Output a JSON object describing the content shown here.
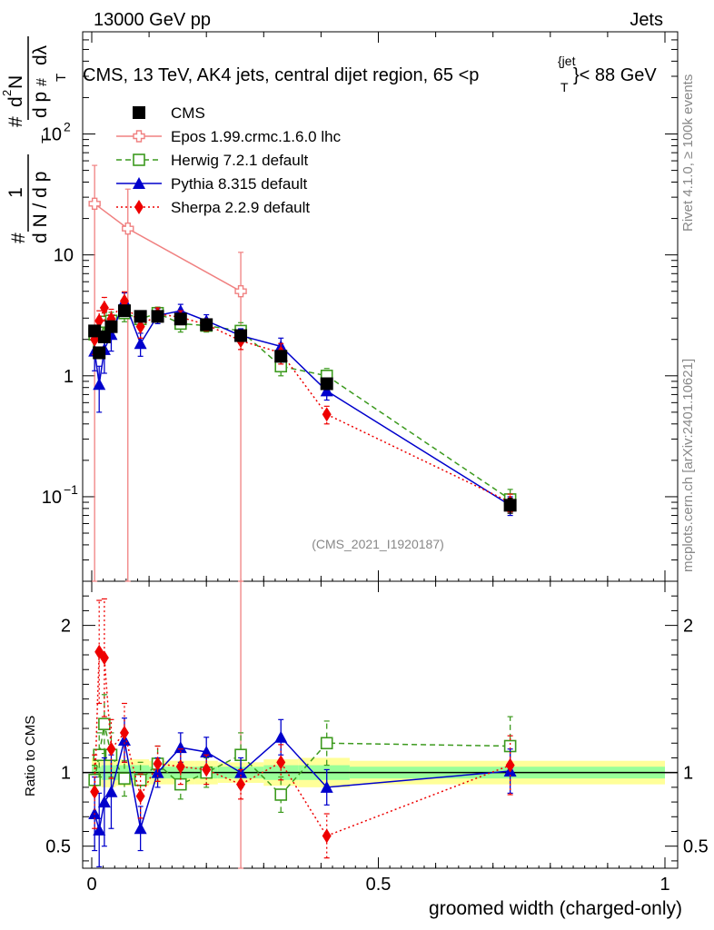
{
  "header": {
    "left": "13000 GeV pp",
    "right": "Jets",
    "title_pre": "CMS, 13 TeV, AK4 jets, central dijet region, 65 <",
    "title_p": "p",
    "title_sub": "T",
    "title_sup": "{jet",
    "title_post": "}< 88 GeV",
    "watermark": "(CMS_2021_I1920187)",
    "side_rivet": "Rivet 4.1.0, ≥ 100k events",
    "side_site": "mcplots.cern.ch [arXiv:2401.10621]"
  },
  "ylabel": {
    "hash1": "#",
    "one": "1",
    "denom": "d N / d p",
    "denom_sub": "T",
    "hash2": "#",
    "num": "d",
    "num_sup": "2",
    "num_n": "N",
    "d_pt": "d p",
    "d_pt_sub": "T",
    "dlam": "dλ",
    "hash3": "#"
  },
  "colors": {
    "cms": "#000000",
    "epos": "#f08080",
    "herwig": "#3c9a1e",
    "pythia": "#0000cc",
    "sherpa": "#ee0000",
    "band_outer": "#ffff99",
    "band_inner": "#99ff99"
  },
  "chart_data": [
    {
      "type": "scatter",
      "panel": "main",
      "xlabel": "groomed width (charged-only)",
      "ylabel": "1/dN/dpT d2N/dpT dlambda",
      "xlim": [
        0,
        1
      ],
      "ylim": [
        0.02,
        700
      ],
      "yscale": "log",
      "yticks": [
        {
          "v": 0.1,
          "base": "10",
          "exp": "−1"
        },
        {
          "v": 1,
          "base": "1",
          "exp": ""
        },
        {
          "v": 10,
          "base": "10",
          "exp": ""
        },
        {
          "v": 100,
          "base": "10",
          "exp": "2"
        }
      ],
      "series": [
        {
          "name": "CMS",
          "key": "cms",
          "marker": "square",
          "line": "none",
          "x": [
            0.005,
            0.013,
            0.022,
            0.034,
            0.057,
            0.085,
            0.115,
            0.155,
            0.2,
            0.26,
            0.33,
            0.41,
            0.73
          ],
          "y": [
            2.35,
            1.55,
            2.1,
            2.55,
            3.45,
            3.1,
            3.1,
            2.95,
            2.65,
            2.15,
            1.45,
            0.86,
            0.085
          ],
          "err": [
            0.2,
            0.15,
            0.2,
            0.25,
            0.3,
            0.25,
            0.25,
            0.25,
            0.2,
            0.2,
            0.15,
            0.08,
            0.012
          ]
        },
        {
          "name": "Epos 1.99.crmc.1.6.0 lhc",
          "key": "epos",
          "marker": "cross-open",
          "line": "solid",
          "x": [
            0.005,
            0.063,
            0.26
          ],
          "y": [
            26.5,
            16.5,
            5.0
          ],
          "lo": [
            0.001,
            0.001,
            0.001
          ],
          "hi": [
            55,
            35,
            10.5
          ]
        },
        {
          "name": "Herwig 7.2.1 default",
          "key": "herwig",
          "marker": "square-open",
          "line": "dashed",
          "x": [
            0.005,
            0.013,
            0.022,
            0.034,
            0.057,
            0.085,
            0.115,
            0.155,
            0.2,
            0.26,
            0.33,
            0.41,
            0.73
          ],
          "y": [
            2.2,
            1.75,
            2.8,
            2.85,
            3.3,
            2.95,
            3.3,
            2.7,
            2.6,
            2.35,
            1.2,
            1.0,
            0.095
          ],
          "err": [
            0.3,
            0.3,
            0.5,
            0.5,
            0.5,
            0.5,
            0.4,
            0.4,
            0.3,
            0.4,
            0.2,
            0.15,
            0.02
          ]
        },
        {
          "name": "Pythia 8.315 default",
          "key": "pythia",
          "marker": "triangle",
          "line": "solid",
          "x": [
            0.005,
            0.013,
            0.022,
            0.034,
            0.057,
            0.085,
            0.115,
            0.155,
            0.2,
            0.26,
            0.33,
            0.41,
            0.73
          ],
          "y": [
            1.6,
            0.85,
            1.65,
            2.2,
            4.15,
            1.85,
            3.15,
            3.45,
            2.85,
            2.15,
            1.75,
            0.75,
            0.085
          ],
          "err": [
            0.5,
            0.35,
            0.6,
            0.6,
            0.7,
            0.4,
            0.45,
            0.45,
            0.35,
            0.3,
            0.3,
            0.12,
            0.015
          ]
        },
        {
          "name": "Sherpa 2.2.9 default",
          "key": "sherpa",
          "marker": "diamond",
          "line": "dotted",
          "x": [
            0.005,
            0.013,
            0.022,
            0.034,
            0.057,
            0.085,
            0.115,
            0.155,
            0.2,
            0.26,
            0.33,
            0.41,
            0.73
          ],
          "y": [
            2.0,
            2.85,
            3.65,
            2.95,
            4.15,
            2.55,
            3.25,
            3.05,
            2.65,
            1.95,
            1.55,
            0.48,
            0.09
          ],
          "err": [
            0.5,
            0.6,
            0.8,
            0.6,
            0.8,
            0.5,
            0.4,
            0.4,
            0.3,
            0.3,
            0.3,
            0.08,
            0.015
          ]
        }
      ]
    },
    {
      "type": "scatter",
      "panel": "ratio",
      "xlabel": "groomed width (charged-only)",
      "ylabel": "Ratio to CMS",
      "xlim": [
        0,
        1
      ],
      "ylim": [
        0.35,
        2.3
      ],
      "xticks": [
        0,
        0.5,
        1
      ],
      "xtick_labels": [
        "0",
        "0.5",
        "1"
      ],
      "yticks": [
        0.5,
        1,
        2
      ],
      "ytick_labels": [
        "0.5",
        "1",
        "2"
      ],
      "band": {
        "edges": [
          0,
          0.01,
          0.017,
          0.027,
          0.042,
          0.072,
          0.1,
          0.13,
          0.18,
          0.22,
          0.3,
          0.36,
          0.45,
          1.0
        ],
        "inner": [
          0.05,
          0.04,
          0.05,
          0.05,
          0.05,
          0.05,
          0.04,
          0.04,
          0.04,
          0.04,
          0.05,
          0.05,
          0.04
        ],
        "outer": [
          0.1,
          0.09,
          0.1,
          0.1,
          0.09,
          0.09,
          0.08,
          0.08,
          0.08,
          0.07,
          0.09,
          0.1,
          0.08
        ]
      },
      "series": [
        {
          "name": "Epos 1.99.crmc.1.6.0 lhc",
          "key": "epos",
          "marker": "cross-open",
          "line": "solid",
          "x": [
            0.26
          ],
          "y": [
            2.32
          ],
          "lo": [
            0.3
          ],
          "hi": [
            2.4
          ]
        },
        {
          "name": "Herwig 7.2.1 default",
          "key": "herwig",
          "marker": "square-open",
          "line": "dashed",
          "x": [
            0.005,
            0.013,
            0.022,
            0.034,
            0.057,
            0.085,
            0.115,
            0.155,
            0.2,
            0.26,
            0.33,
            0.41,
            0.73
          ],
          "y": [
            0.95,
            1.12,
            1.33,
            1.12,
            0.96,
            0.95,
            1.06,
            0.92,
            1.0,
            1.12,
            0.85,
            1.2,
            1.18
          ],
          "err": [
            0.1,
            0.15,
            0.2,
            0.15,
            0.12,
            0.12,
            0.12,
            0.1,
            0.1,
            0.15,
            0.12,
            0.15,
            0.2
          ]
        },
        {
          "name": "Pythia 8.315 default",
          "key": "pythia",
          "marker": "triangle",
          "line": "solid",
          "x": [
            0.005,
            0.013,
            0.022,
            0.034,
            0.057,
            0.085,
            0.115,
            0.155,
            0.2,
            0.26,
            0.33,
            0.41,
            0.73
          ],
          "y": [
            0.72,
            0.61,
            0.8,
            0.87,
            1.22,
            0.62,
            1.0,
            1.17,
            1.14,
            1.0,
            1.24,
            0.9,
            1.01
          ],
          "err": [
            0.25,
            0.25,
            0.3,
            0.25,
            0.15,
            0.15,
            0.1,
            0.1,
            0.1,
            0.1,
            0.12,
            0.12,
            0.15
          ]
        },
        {
          "name": "Sherpa 2.2.9 default",
          "key": "sherpa",
          "marker": "diamond",
          "line": "dotted",
          "x": [
            0.005,
            0.013,
            0.022,
            0.034,
            0.057,
            0.085,
            0.115,
            0.155,
            0.2,
            0.26,
            0.33,
            0.41,
            0.73
          ],
          "y": [
            0.87,
            1.82,
            1.78,
            1.16,
            1.27,
            0.84,
            1.06,
            1.04,
            1.02,
            0.92,
            1.07,
            0.57,
            1.05
          ],
          "err": [
            0.25,
            0.35,
            0.4,
            0.2,
            0.2,
            0.15,
            0.12,
            0.12,
            0.1,
            0.1,
            0.12,
            0.15,
            0.2
          ]
        }
      ]
    }
  ]
}
